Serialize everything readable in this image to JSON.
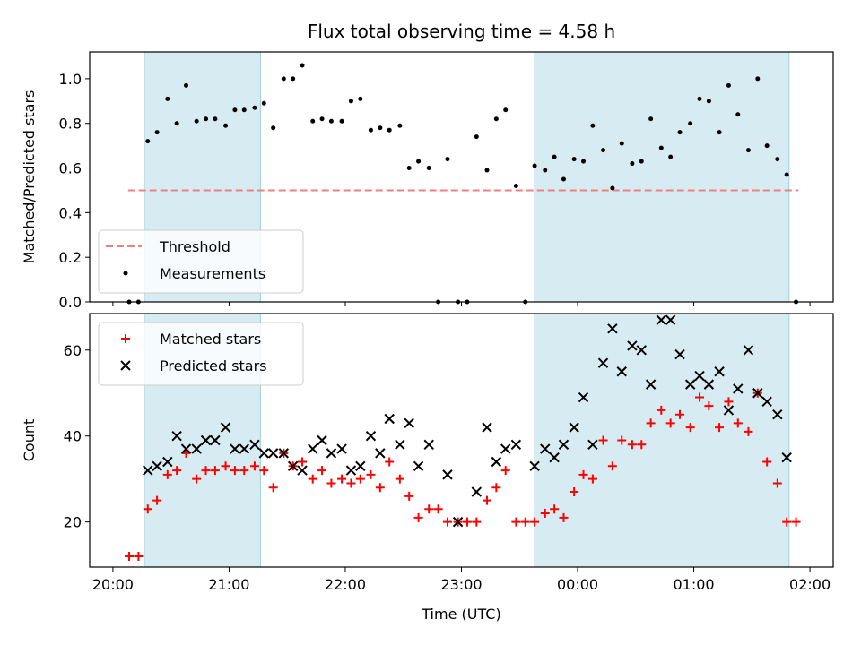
{
  "chart_data": [
    {
      "type": "scatter",
      "title": "Flux total observing time = 4.58 h",
      "xlabel": "",
      "ylabel": "Matched/Predicted stars",
      "x_unit": "hours relative to 00:00 UTC",
      "xlim": [
        -4.2,
        2.2
      ],
      "ylim": [
        0,
        1.12
      ],
      "yticks": [
        0.0,
        0.2,
        0.4,
        0.6,
        0.8,
        1.0
      ],
      "ytick_labels": [
        "0.0",
        "0.2",
        "0.4",
        "0.6",
        "0.8",
        "1.0"
      ],
      "shaded_spans": [
        [
          -3.73,
          -2.73
        ],
        [
          -0.37,
          1.82
        ]
      ],
      "legend": {
        "position": "lower-left",
        "entries": [
          {
            "label": "Threshold",
            "style": "dashed-line"
          },
          {
            "label": "Measurements",
            "style": "dot"
          }
        ]
      },
      "series": [
        {
          "name": "Threshold",
          "kind": "line",
          "color": "#f08080",
          "x": [
            -3.87,
            1.9
          ],
          "values": [
            0.5,
            0.5
          ]
        },
        {
          "name": "Measurements",
          "kind": "scatter",
          "color": "#000000",
          "x": [
            -3.86,
            -3.78,
            -3.7,
            -3.62,
            -3.53,
            -3.45,
            -3.37,
            -3.28,
            -3.2,
            -3.12,
            -3.03,
            -2.95,
            -2.87,
            -2.78,
            -2.7,
            -2.62,
            -2.53,
            -2.45,
            -2.37,
            -2.28,
            -2.2,
            -2.12,
            -2.03,
            -1.95,
            -1.87,
            -1.78,
            -1.7,
            -1.62,
            -1.53,
            -1.45,
            -1.37,
            -1.28,
            -1.2,
            -1.12,
            -1.03,
            -0.95,
            -0.87,
            -0.78,
            -0.7,
            -0.62,
            -0.53,
            -0.45,
            -0.37,
            -0.28,
            -0.2,
            -0.12,
            -0.03,
            0.05,
            0.13,
            0.22,
            0.3,
            0.38,
            0.47,
            0.55,
            0.63,
            0.72,
            0.8,
            0.88,
            0.97,
            1.05,
            1.13,
            1.22,
            1.3,
            1.38,
            1.47,
            1.55,
            1.63,
            1.72,
            1.8,
            1.88
          ],
          "values": [
            0.0,
            0.0,
            0.72,
            0.76,
            0.91,
            0.8,
            0.97,
            0.81,
            0.82,
            0.82,
            0.79,
            0.86,
            0.86,
            0.87,
            0.89,
            0.78,
            1.0,
            1.0,
            1.06,
            0.81,
            0.82,
            0.81,
            0.81,
            0.9,
            0.91,
            0.77,
            0.78,
            0.77,
            0.79,
            0.6,
            0.63,
            0.6,
            0.0,
            0.64,
            0.0,
            0.0,
            0.74,
            0.59,
            0.82,
            0.86,
            0.52,
            0.0,
            0.61,
            0.59,
            0.65,
            0.55,
            0.64,
            0.63,
            0.79,
            0.68,
            0.51,
            0.71,
            0.62,
            0.63,
            0.82,
            0.69,
            0.65,
            0.76,
            0.8,
            0.91,
            0.9,
            0.76,
            0.97,
            0.84,
            0.68,
            1.0,
            0.7,
            0.64,
            0.57,
            0.0
          ]
        }
      ]
    },
    {
      "type": "scatter",
      "title": "",
      "xlabel": "Time (UTC)",
      "ylabel": "Count",
      "x_unit": "hours relative to 00:00 UTC",
      "xlim": [
        -4.2,
        2.2
      ],
      "ylim": [
        9.5,
        68.5
      ],
      "yticks": [
        20,
        40,
        60
      ],
      "ytick_labels": [
        "20",
        "40",
        "60"
      ],
      "xticks": [
        -4,
        -3,
        -2,
        -1,
        0,
        1,
        2
      ],
      "xtick_labels": [
        "20:00",
        "21:00",
        "22:00",
        "23:00",
        "00:00",
        "01:00",
        "02:00"
      ],
      "shaded_spans": [
        [
          -3.73,
          -2.73
        ],
        [
          -0.37,
          1.82
        ]
      ],
      "legend": {
        "position": "upper-left",
        "entries": [
          {
            "label": "Matched stars",
            "style": "plus"
          },
          {
            "label": "Predicted stars",
            "style": "cross"
          }
        ]
      },
      "series": [
        {
          "name": "Matched stars",
          "marker": "plus",
          "color": "#ff0000",
          "x": [
            -3.86,
            -3.78,
            -3.7,
            -3.62,
            -3.53,
            -3.45,
            -3.37,
            -3.28,
            -3.2,
            -3.12,
            -3.03,
            -2.95,
            -2.87,
            -2.78,
            -2.7,
            -2.62,
            -2.53,
            -2.45,
            -2.37,
            -2.28,
            -2.2,
            -2.12,
            -2.03,
            -1.95,
            -1.87,
            -1.78,
            -1.7,
            -1.62,
            -1.53,
            -1.45,
            -1.37,
            -1.28,
            -1.2,
            -1.12,
            -1.03,
            -0.95,
            -0.87,
            -0.78,
            -0.7,
            -0.62,
            -0.53,
            -0.45,
            -0.37,
            -0.28,
            -0.2,
            -0.12,
            -0.03,
            0.05,
            0.13,
            0.22,
            0.3,
            0.38,
            0.47,
            0.55,
            0.63,
            0.72,
            0.8,
            0.88,
            0.97,
            1.05,
            1.13,
            1.22,
            1.3,
            1.38,
            1.47,
            1.55,
            1.63,
            1.72,
            1.8,
            1.88
          ],
          "values": [
            12,
            12,
            23,
            25,
            31,
            32,
            36,
            30,
            32,
            32,
            33,
            32,
            32,
            33,
            32,
            28,
            36,
            33,
            34,
            30,
            32,
            29,
            30,
            29,
            30,
            31,
            28,
            34,
            30,
            26,
            21,
            23,
            23,
            20,
            20,
            20,
            20,
            25,
            28,
            32,
            20,
            20,
            20,
            22,
            23,
            21,
            27,
            31,
            30,
            39,
            33,
            39,
            38,
            38,
            43,
            46,
            43,
            45,
            42,
            49,
            47,
            42,
            48,
            43,
            41,
            50,
            34,
            29,
            20,
            20
          ]
        },
        {
          "name": "Predicted stars",
          "marker": "cross",
          "color": "#000000",
          "x": [
            -3.7,
            -3.62,
            -3.53,
            -3.45,
            -3.37,
            -3.28,
            -3.2,
            -3.12,
            -3.03,
            -2.95,
            -2.87,
            -2.78,
            -2.7,
            -2.62,
            -2.53,
            -2.45,
            -2.37,
            -2.28,
            -2.2,
            -2.12,
            -2.03,
            -1.95,
            -1.87,
            -1.78,
            -1.7,
            -1.62,
            -1.53,
            -1.45,
            -1.37,
            -1.28,
            -1.12,
            -1.03,
            -0.87,
            -0.78,
            -0.7,
            -0.62,
            -0.53,
            -0.37,
            -0.28,
            -0.2,
            -0.12,
            -0.03,
            0.05,
            0.13,
            0.22,
            0.3,
            0.38,
            0.47,
            0.55,
            0.63,
            0.72,
            0.8,
            0.88,
            0.97,
            1.05,
            1.13,
            1.22,
            1.3,
            1.38,
            1.47,
            1.55,
            1.63,
            1.72,
            1.8
          ],
          "values": [
            32,
            33,
            34,
            40,
            37,
            37,
            39,
            39,
            42,
            37,
            37,
            38,
            36,
            36,
            36,
            33,
            32,
            37,
            39,
            36,
            37,
            32,
            33,
            40,
            36,
            44,
            38,
            43,
            33,
            38,
            31,
            20,
            27,
            42,
            34,
            37,
            38,
            33,
            37,
            35,
            38,
            42,
            49,
            38,
            57,
            65,
            55,
            61,
            60,
            52,
            67,
            67,
            59,
            52,
            54,
            52,
            55,
            46,
            51,
            60,
            50,
            48,
            45,
            35
          ]
        }
      ]
    }
  ]
}
